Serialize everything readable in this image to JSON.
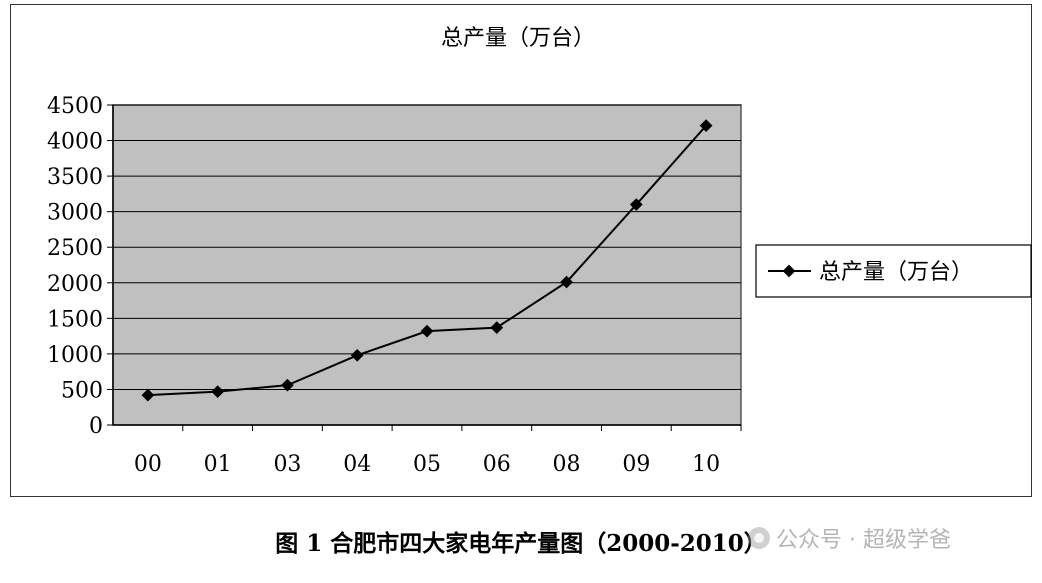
{
  "chart_data": {
    "type": "line",
    "title": "总产量（万台）",
    "categories": [
      "00",
      "01",
      "03",
      "04",
      "05",
      "06",
      "08",
      "09",
      "10"
    ],
    "series": [
      {
        "name": "总产量（万台）",
        "values": [
          420,
          470,
          560,
          980,
          1320,
          1370,
          2010,
          3100,
          4210
        ]
      }
    ],
    "ylim": [
      0,
      4500
    ],
    "yticks": [
      0,
      500,
      1000,
      1500,
      2000,
      2500,
      3000,
      3500,
      4000,
      4500
    ],
    "grid": true,
    "legend": "right",
    "colors": {
      "plot_bg": "#c0c0c0",
      "line": "#000000",
      "gridline": "#000000"
    }
  },
  "caption": "图 1  合肥市四大家电年产量图（2000-2010）",
  "watermark": "公众号 · 超级学爸"
}
